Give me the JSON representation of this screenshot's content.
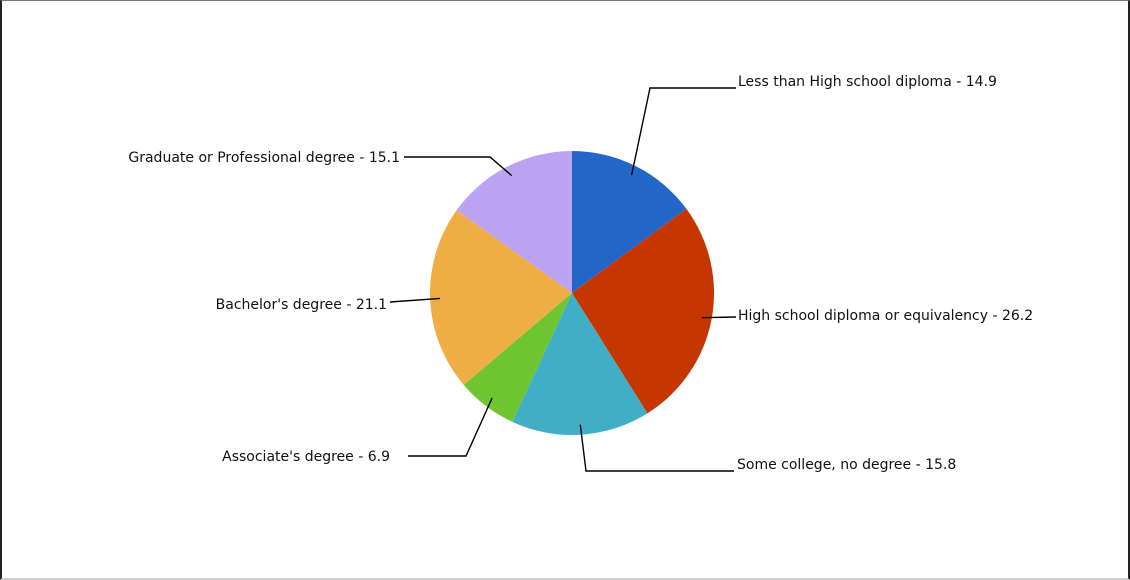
{
  "chart_data": {
    "type": "pie",
    "title": "",
    "start_angle_deg": 0,
    "direction": "clockwise",
    "legend": "none",
    "slices": [
      {
        "label": "Less than High school diploma",
        "value": 14.9,
        "text": "Less than High school diploma - 14.9",
        "color": "#2266c8"
      },
      {
        "label": "High school diploma or equivalency",
        "value": 26.2,
        "text": "High school diploma or equivalency - 26.2",
        "color": "#c63700"
      },
      {
        "label": "Some college, no degree",
        "value": 15.8,
        "text": "Some college, no degree - 15.8",
        "color": "#40afc5"
      },
      {
        "label": "Associate's degree",
        "value": 6.9,
        "text": "Associate's degree - 6.9",
        "color": "#6ec52f"
      },
      {
        "label": "Bachelor's degree",
        "value": 21.1,
        "text": "Bachelor's degree - 21.1",
        "color": "#eeae44"
      },
      {
        "label": "Graduate or Professional degree",
        "value": 15.1,
        "text": "Graduate or Professional degree - 15.1",
        "color": "#bba3f2"
      }
    ]
  }
}
